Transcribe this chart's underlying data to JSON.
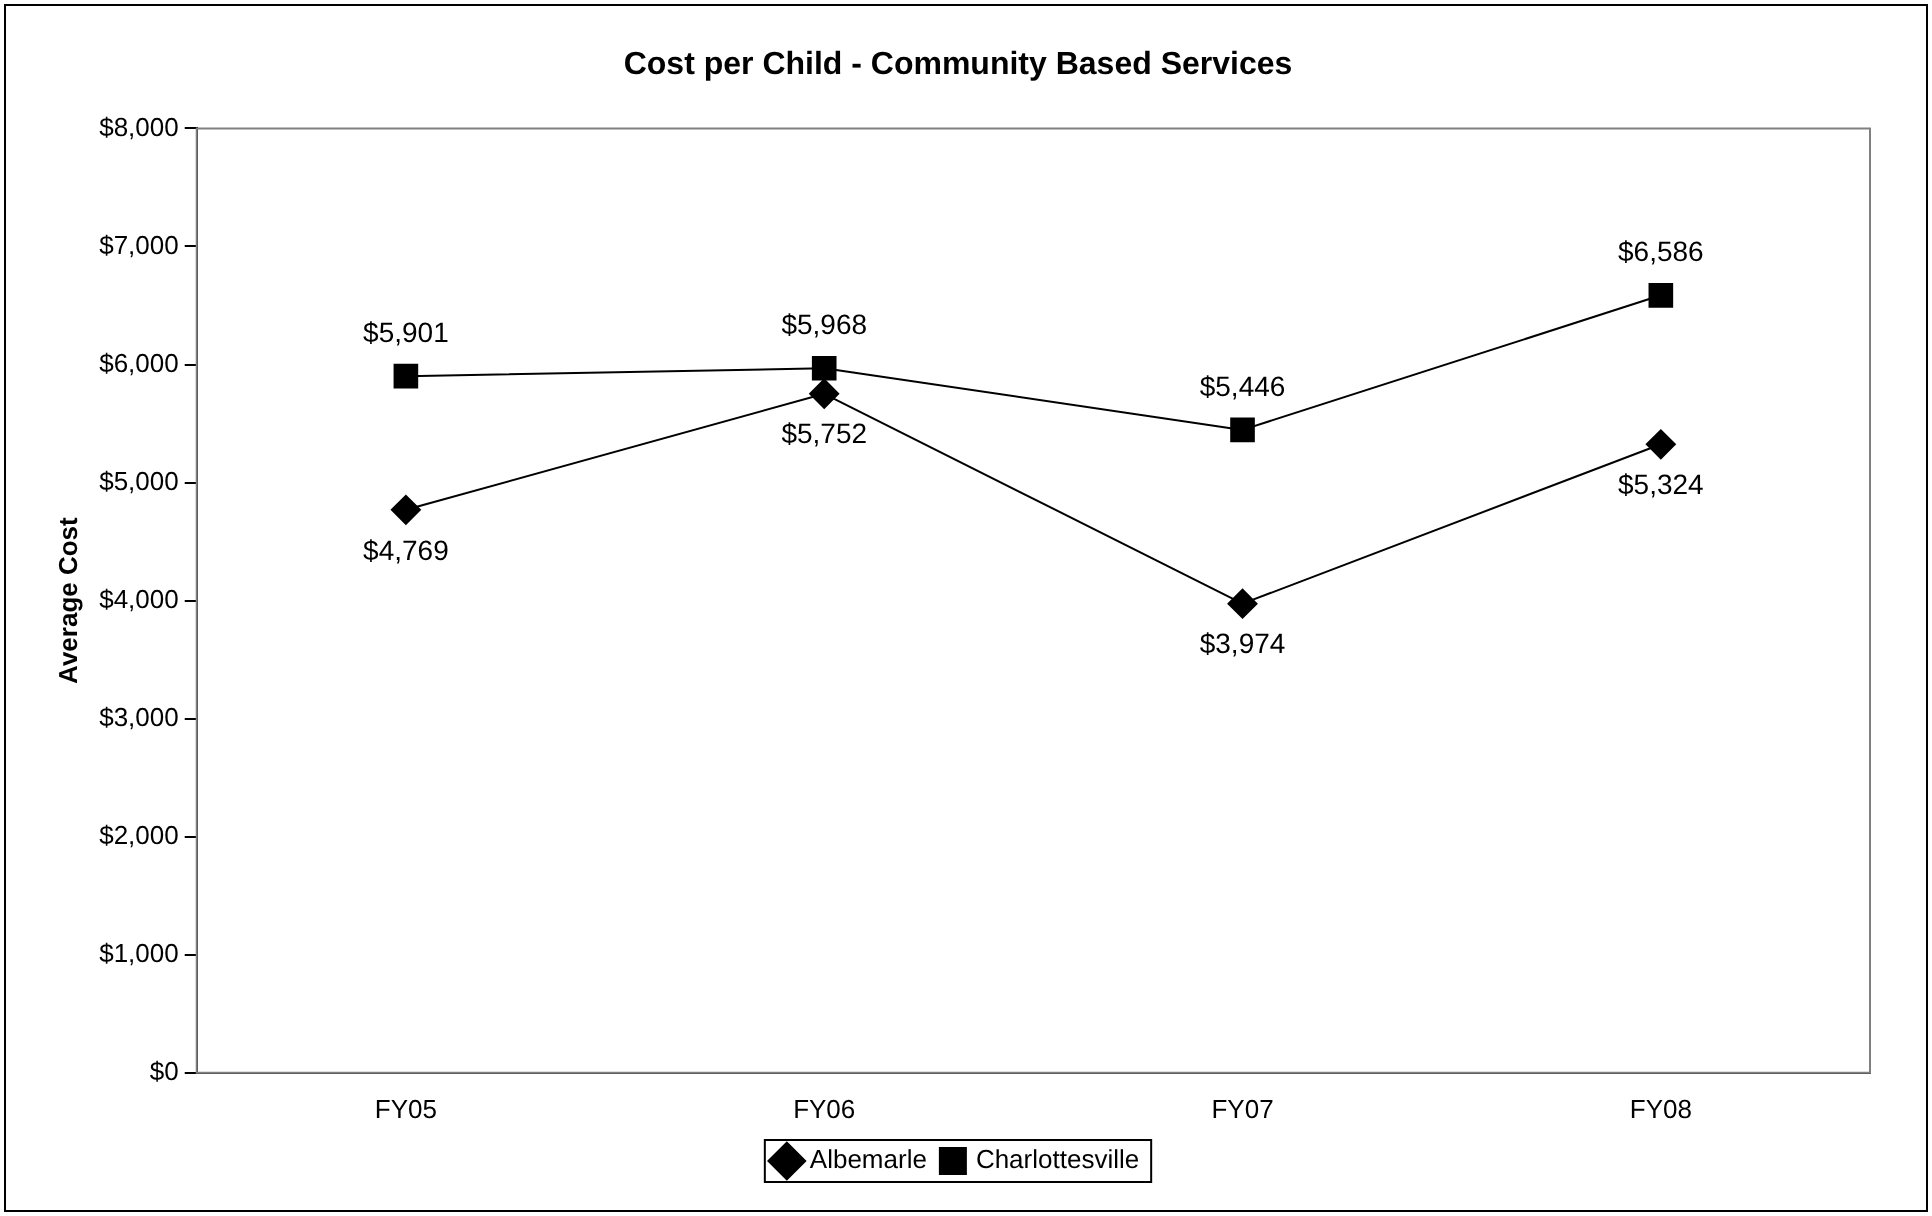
{
  "chart_data": {
    "type": "line",
    "title": "Cost per Child - Community Based Services",
    "ylabel": "Average Cost",
    "categories": [
      "FY05",
      "FY06",
      "FY07",
      "FY08"
    ],
    "series": [
      {
        "name": "Albemarle",
        "color": "#000000",
        "marker": "diamond",
        "values": [
          4769,
          5752,
          3974,
          5324
        ],
        "value_labels": [
          "$4,769",
          "$5,752",
          "$3,974",
          "$5,324"
        ]
      },
      {
        "name": "Charlottesville",
        "color": "#000000",
        "marker": "square",
        "values": [
          5901,
          5968,
          5446,
          6586
        ],
        "value_labels": [
          "$5,901",
          "$5,968",
          "$5,446",
          "$6,586"
        ]
      }
    ],
    "ylim": [
      0,
      8000
    ],
    "yticks": [
      {
        "value": 0,
        "label": "$0"
      },
      {
        "value": 1000,
        "label": "$1,000"
      },
      {
        "value": 2000,
        "label": "$2,000"
      },
      {
        "value": 3000,
        "label": "$3,000"
      },
      {
        "value": 4000,
        "label": "$4,000"
      },
      {
        "value": 5000,
        "label": "$5,000"
      },
      {
        "value": 6000,
        "label": "$6,000"
      },
      {
        "value": 7000,
        "label": "$7,000"
      },
      {
        "value": 8000,
        "label": "$8,000"
      }
    ],
    "legend": "bottom",
    "line_style": "solid"
  }
}
